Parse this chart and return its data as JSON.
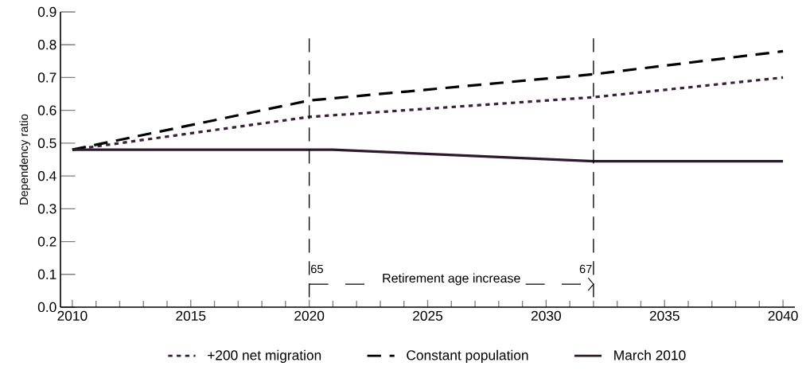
{
  "chart_data": {
    "type": "line",
    "ylabel": "Dependency ratio",
    "x": [
      2010,
      2020,
      2032,
      2040
    ],
    "series": [
      {
        "name": "+200 net migration",
        "color": "#3a1f3a",
        "line_style": "dotted",
        "values": [
          0.48,
          0.58,
          0.64,
          0.7
        ]
      },
      {
        "name": "Constant population",
        "color": "#000000",
        "line_style": "dashed",
        "values": [
          0.48,
          0.63,
          0.71,
          0.78
        ]
      },
      {
        "name": "March 2010",
        "color": "#2d1a2d",
        "line_style": "solid",
        "x": [
          2010,
          2020,
          2021,
          2032,
          2040
        ],
        "values": [
          0.48,
          0.48,
          0.48,
          0.445,
          0.445
        ]
      }
    ],
    "xlim": [
      2009.5,
      2040.5
    ],
    "ylim": [
      0,
      0.9
    ],
    "xticks": [
      2010,
      2015,
      2020,
      2025,
      2030,
      2035,
      2040
    ],
    "yticks": [
      {
        "value": 0,
        "label": "0.0"
      },
      0.1,
      0.2,
      0.3,
      0.4,
      0.5,
      0.6,
      0.7,
      0.8,
      0.9
    ],
    "ref_lines": [
      {
        "axis": "x",
        "value": 2020,
        "line_style": "dashed",
        "color": "#000000"
      },
      {
        "axis": "x",
        "value": 2032,
        "line_style": "dashed",
        "color": "#000000"
      }
    ],
    "annotations": [
      "Retirement age increase",
      {
        "text": "65",
        "x": 2020,
        "y": 0.1
      },
      {
        "text": "67",
        "x": 2032,
        "y": 0.1
      }
    ],
    "legend": "bottom",
    "marker": "none",
    "grid": false
  }
}
